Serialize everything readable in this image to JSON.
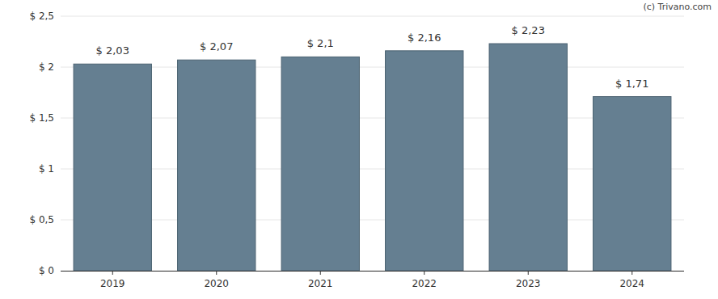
{
  "chart_data": {
    "type": "bar",
    "annotation": "(c) Trivano.com",
    "categories": [
      "2019",
      "2020",
      "2021",
      "2022",
      "2023",
      "2024"
    ],
    "values": [
      2.03,
      2.07,
      2.1,
      2.16,
      2.23,
      1.71
    ],
    "value_labels": [
      "$ 2,03",
      "$ 2,07",
      "$ 2,1",
      "$ 2,16",
      "$ 2,23",
      "$ 1,71"
    ],
    "data_labels": true,
    "color": "#657f91",
    "ylim": [
      0,
      2.5
    ],
    "yticks": [
      {
        "value": 0,
        "label": "$ 0"
      },
      {
        "value": 0.5,
        "label": "$ 0,5"
      },
      {
        "value": 1,
        "label": "$ 1"
      },
      {
        "value": 1.5,
        "label": "$ 1,5"
      },
      {
        "value": 2,
        "label": "$ 2"
      },
      {
        "value": 2.5,
        "label": "$ 2,5"
      }
    ],
    "grid": true
  }
}
